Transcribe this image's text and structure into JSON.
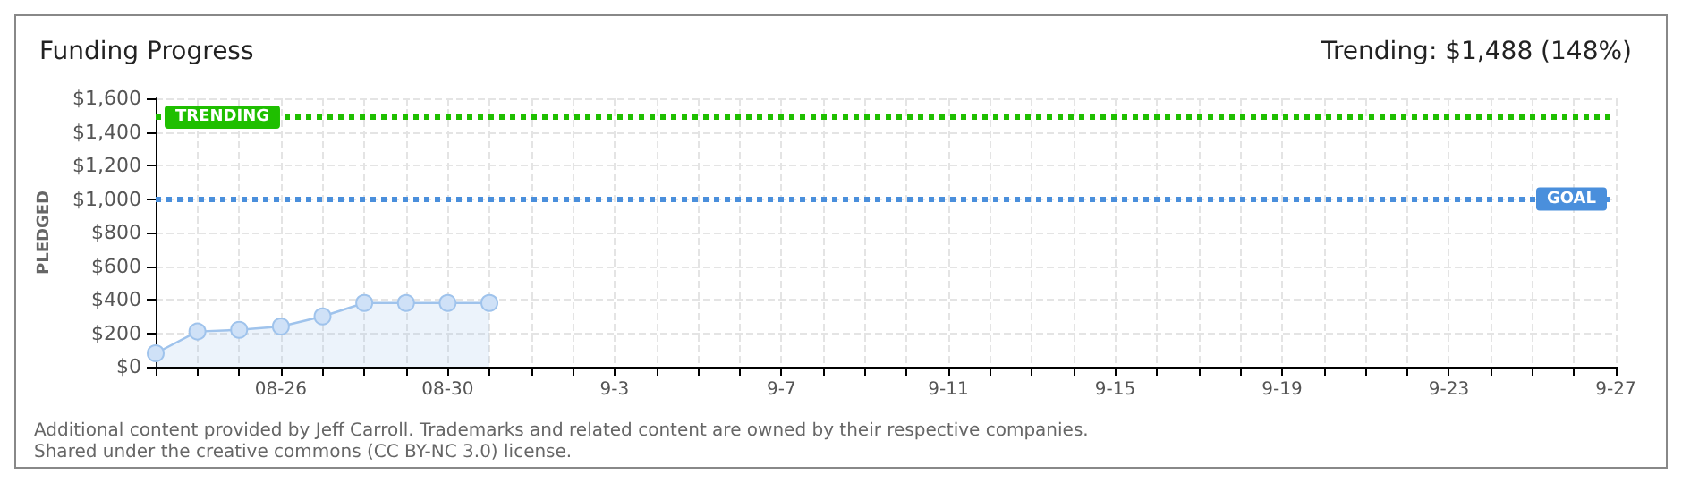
{
  "chart_data": {
    "type": "area",
    "title": "Funding Progress",
    "subtitle": "Trending: $1,488 (148%)",
    "ylabel": "PLEDGED",
    "x": [
      "--08-23",
      "--08-24",
      "--08-25",
      "--08-26",
      "--08-27",
      "--08-28",
      "--08-29",
      "--08-30",
      "--08-31"
    ],
    "series": [
      {
        "color": "#9fc3ec",
        "values": [
          80,
          210,
          220,
          240,
          300,
          380,
          380,
          380,
          380
        ]
      }
    ],
    "xlim": [
      "--08-23",
      "--09-27"
    ],
    "xticks": [
      {
        "value": "--08-23",
        "label": null
      },
      {
        "value": "--08-24",
        "label": null
      },
      {
        "value": "--08-25",
        "label": null
      },
      {
        "value": "--08-26",
        "label": "08-26"
      },
      {
        "value": "--08-27",
        "label": null
      },
      {
        "value": "--08-28",
        "label": null
      },
      {
        "value": "--08-29",
        "label": null
      },
      {
        "value": "--08-30",
        "label": "08-30"
      },
      {
        "value": "--08-31",
        "label": null
      },
      {
        "value": "--09-01",
        "label": null
      },
      {
        "value": "--09-02",
        "label": null
      },
      {
        "value": "--09-03",
        "label": "9-3"
      },
      {
        "value": "--09-04",
        "label": null
      },
      {
        "value": "--09-05",
        "label": null
      },
      {
        "value": "--09-06",
        "label": null
      },
      {
        "value": "--09-07",
        "label": "9-7"
      },
      {
        "value": "--09-08",
        "label": null
      },
      {
        "value": "--09-09",
        "label": null
      },
      {
        "value": "--09-10",
        "label": null
      },
      {
        "value": "--09-11",
        "label": "9-11"
      },
      {
        "value": "--09-12",
        "label": null
      },
      {
        "value": "--09-13",
        "label": null
      },
      {
        "value": "--09-14",
        "label": null
      },
      {
        "value": "--09-15",
        "label": "9-15"
      },
      {
        "value": "--09-16",
        "label": null
      },
      {
        "value": "--09-17",
        "label": null
      },
      {
        "value": "--09-18",
        "label": null
      },
      {
        "value": "--09-19",
        "label": "9-19"
      },
      {
        "value": "--09-20",
        "label": null
      },
      {
        "value": "--09-21",
        "label": null
      },
      {
        "value": "--09-22",
        "label": null
      },
      {
        "value": "--09-23",
        "label": "9-23"
      },
      {
        "value": "--09-24",
        "label": null
      },
      {
        "value": "--09-25",
        "label": null
      },
      {
        "value": "--09-26",
        "label": null
      },
      {
        "value": "--09-27",
        "label": "9-27"
      }
    ],
    "ylim": [
      0,
      1600
    ],
    "yticks": [
      {
        "value": 0,
        "label": "$0"
      },
      {
        "value": 200,
        "label": "$200"
      },
      {
        "value": 400,
        "label": "$400"
      },
      {
        "value": 600,
        "label": "$600"
      },
      {
        "value": 800,
        "label": "$800"
      },
      {
        "value": 1000,
        "label": "$1,000"
      },
      {
        "value": 1200,
        "label": "$1,200"
      },
      {
        "value": 1400,
        "label": "$1,400"
      },
      {
        "value": 1600,
        "label": "$1,600"
      }
    ],
    "ref_lines": [
      {
        "axis": "y",
        "value": 1000,
        "label": "GOAL",
        "color": "#4a8fdc",
        "line_style": "dotted"
      },
      {
        "axis": "y",
        "value": 1488,
        "label": "TRENDING",
        "color": "#1fbf00",
        "line_style": "dotted"
      }
    ],
    "grid": true,
    "marker": "circle",
    "annotations": [
      "Additional content provided by Jeff Carroll. Trademarks and related content are owned by their respective companies.",
      "Shared under the creative commons (CC BY-NC 3.0) license."
    ]
  }
}
